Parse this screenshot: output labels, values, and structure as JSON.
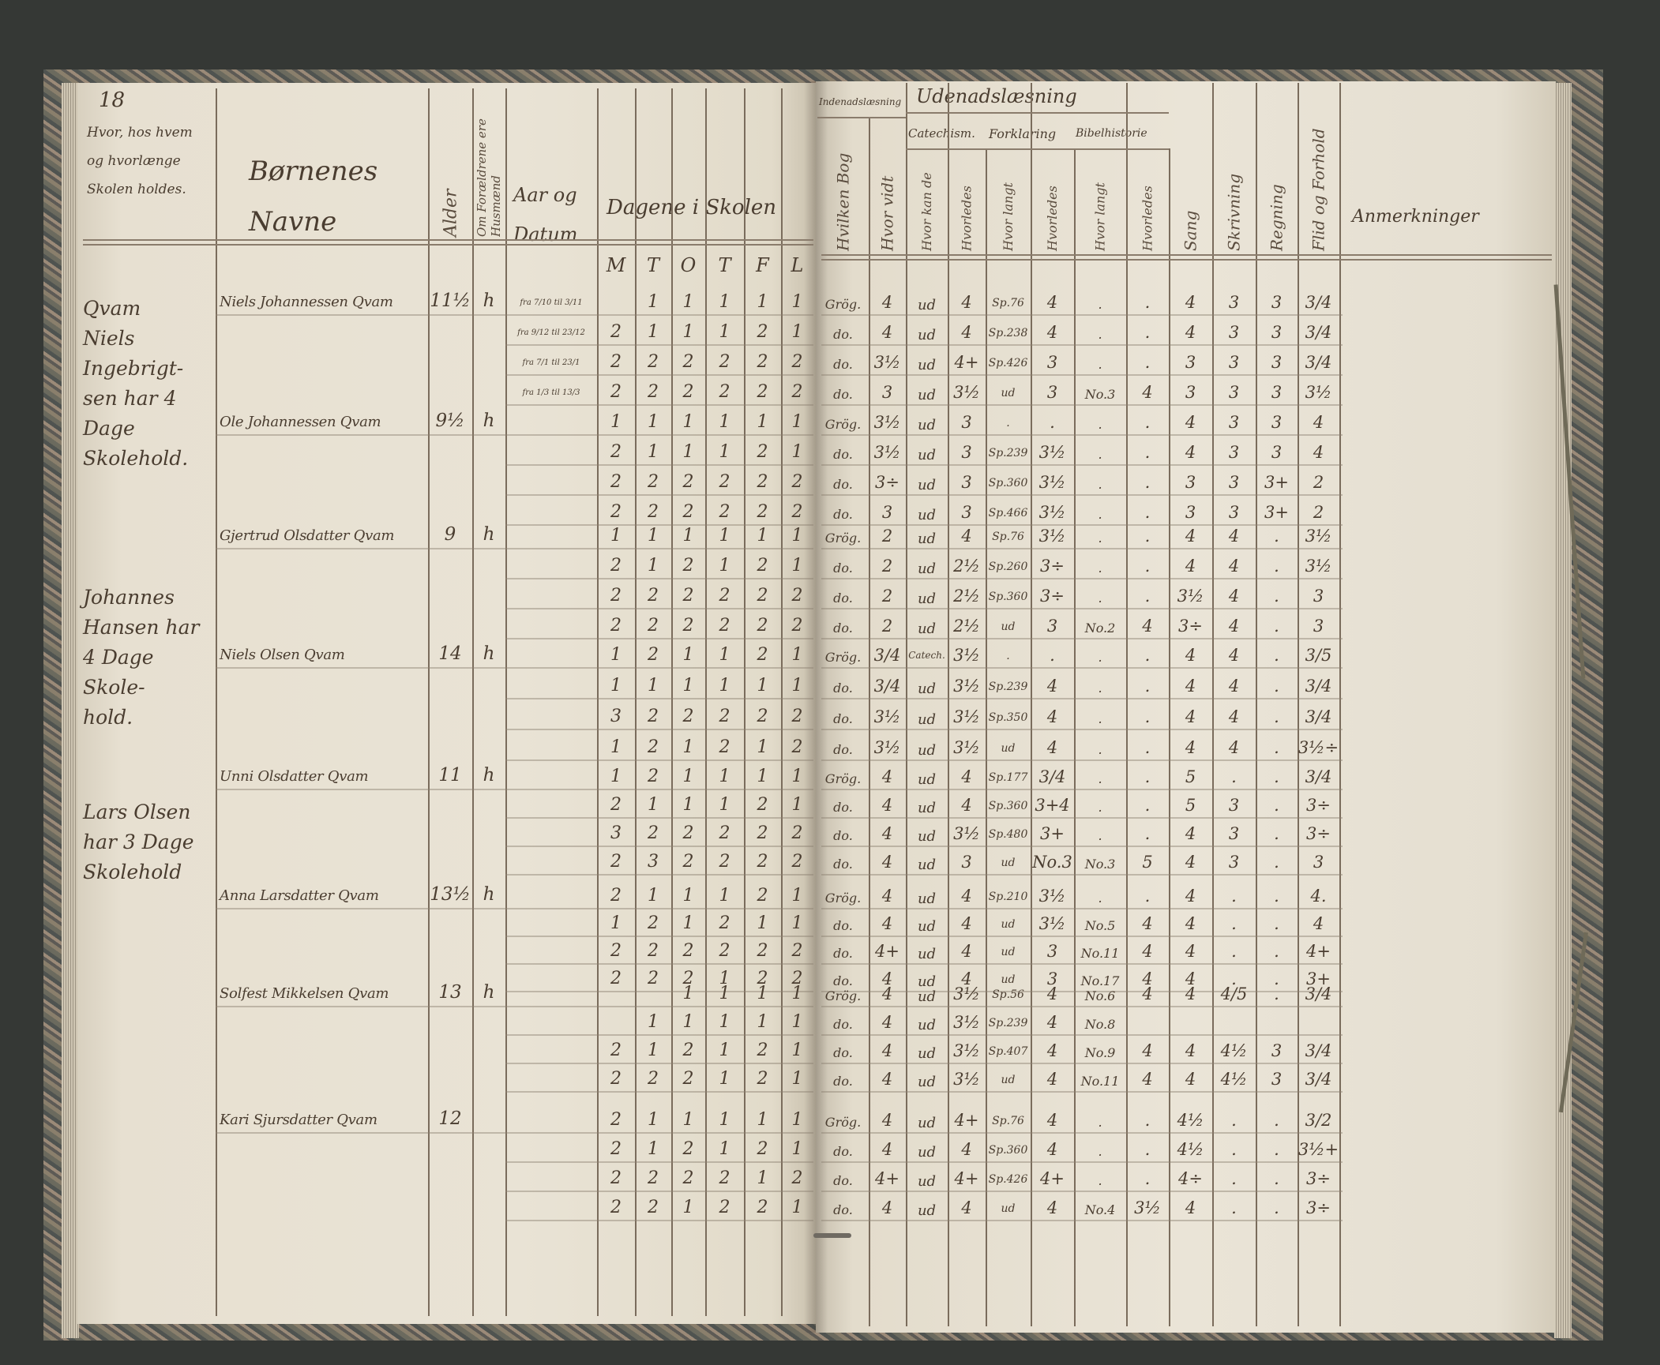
{
  "left_page": {
    "page_number": "18",
    "headers": {
      "location": "Hvor, hos hvem og hvorlænge Skolen holdes.",
      "names_line1": "Børnenes",
      "names_line2": "Navne",
      "age": "Alder",
      "parents": "Om Forældrene ere Husmænd",
      "dates_line1": "Aar og",
      "dates_line2": "Datum",
      "days": "Dagene i Skolen",
      "weekdays": [
        "M",
        "T",
        "O",
        "T",
        "F",
        "L"
      ]
    },
    "margin_notes": [
      "Qvam\nNiels Ingebrigt-\nsen har 4 Dage\nSkolehold.",
      "Johannes\nHansen har\n4 Dage Skole-\nhold.",
      "Lars Olsen\nhar 3 Dage\nSkolehold"
    ]
  },
  "right_page": {
    "headers": {
      "indenad": "Indenadslæsning",
      "udenad": "Udenadslæsning",
      "catechism": "Catechism.",
      "forklaring": "Forklaring",
      "bibelhistorie": "Bibelhistorie",
      "columns": [
        "Hvilken Bog",
        "Hvor vidt",
        "Hvor kan de",
        "Hvorledes",
        "Hvor langt",
        "Hvorledes",
        "Hvor langt",
        "Hvorledes",
        "Sang",
        "Skrivning",
        "Regning",
        "Flid og Forhold"
      ],
      "remarks": "Anmerkninger"
    }
  },
  "students": [
    {
      "name": "Niels Johannessen Qvam",
      "age": "11½",
      "status": "h",
      "dates": [
        "fra 7/10 til 3/11",
        "fra 9/12 til 23/12",
        "fra 7/1 til 23/1",
        "fra 1/3 til 13/3"
      ],
      "attendance": [
        [
          "",
          "1",
          "1",
          "1",
          "1",
          "1"
        ],
        [
          "2",
          "1",
          "1",
          "1",
          "2",
          "1"
        ],
        [
          "2",
          "2",
          "2",
          "2",
          "2",
          "2"
        ],
        [
          "2",
          "2",
          "2",
          "2",
          "2",
          "2"
        ]
      ],
      "marks": [
        [
          "Grög.",
          "4",
          "ud",
          "4",
          "Sp.76",
          "4",
          ".",
          ".",
          "4",
          "3",
          "3",
          "3/4"
        ],
        [
          "do.",
          "4",
          "ud",
          "4",
          "Sp.238",
          "4",
          ".",
          ".",
          "4",
          "3",
          "3",
          "3/4"
        ],
        [
          "do.",
          "3½",
          "ud",
          "4+",
          "Sp.426",
          "3",
          ".",
          ".",
          "3",
          "3",
          "3",
          "3/4"
        ],
        [
          "do.",
          "3",
          "ud",
          "3½",
          "ud",
          "3",
          "No.3",
          "4",
          "3",
          "3",
          "3",
          "3½"
        ]
      ]
    },
    {
      "name": "Ole Johannessen Qvam",
      "age": "9½",
      "status": "h",
      "dates": [
        "",
        "",
        "",
        ""
      ],
      "attendance": [
        [
          "1",
          "1",
          "1",
          "1",
          "1",
          "1"
        ],
        [
          "2",
          "1",
          "1",
          "1",
          "2",
          "1"
        ],
        [
          "2",
          "2",
          "2",
          "2",
          "2",
          "2"
        ],
        [
          "2",
          "2",
          "2",
          "2",
          "2",
          "2"
        ]
      ],
      "marks": [
        [
          "Grög.",
          "3½",
          "ud",
          "3",
          ".",
          ".",
          ".",
          ".",
          "4",
          "3",
          "3",
          "4"
        ],
        [
          "do.",
          "3½",
          "ud",
          "3",
          "Sp.239",
          "3½",
          ".",
          ".",
          "4",
          "3",
          "3",
          "4"
        ],
        [
          "do.",
          "3÷",
          "ud",
          "3",
          "Sp.360",
          "3½",
          ".",
          ".",
          "3",
          "3",
          "3+",
          "2"
        ],
        [
          "do.",
          "3",
          "ud",
          "3",
          "Sp.466",
          "3½",
          ".",
          ".",
          "3",
          "3",
          "3+",
          "2"
        ]
      ]
    },
    {
      "name": "Gjertrud Olsdatter Qvam",
      "age": "9",
      "status": "h",
      "dates": [
        "",
        "",
        "",
        ""
      ],
      "attendance": [
        [
          "1",
          "1",
          "1",
          "1",
          "1",
          "1"
        ],
        [
          "2",
          "1",
          "2",
          "1",
          "2",
          "1"
        ],
        [
          "2",
          "2",
          "2",
          "2",
          "2",
          "2"
        ],
        [
          "2",
          "2",
          "2",
          "2",
          "2",
          "2"
        ]
      ],
      "marks": [
        [
          "Grög.",
          "2",
          "ud",
          "4",
          "Sp.76",
          "3½",
          ".",
          ".",
          "4",
          "4",
          ".",
          "3½"
        ],
        [
          "do.",
          "2",
          "ud",
          "2½",
          "Sp.260",
          "3÷",
          ".",
          ".",
          "4",
          "4",
          ".",
          "3½"
        ],
        [
          "do.",
          "2",
          "ud",
          "2½",
          "Sp.360",
          "3÷",
          ".",
          ".",
          "3½",
          "4",
          ".",
          "3"
        ],
        [
          "do.",
          "2",
          "ud",
          "2½",
          "ud",
          "3",
          "No.2",
          "4",
          "3÷",
          "4",
          ".",
          "3"
        ]
      ]
    },
    {
      "name": "Niels Olsen Qvam",
      "age": "14",
      "status": "h",
      "dates": [
        "",
        "",
        "",
        ""
      ],
      "attendance": [
        [
          "1",
          "2",
          "1",
          "1",
          "2",
          "1"
        ],
        [
          "1",
          "1",
          "1",
          "1",
          "1",
          "1"
        ],
        [
          "3",
          "2",
          "2",
          "2",
          "2",
          "2"
        ],
        [
          "1",
          "2",
          "1",
          "2",
          "1",
          "2"
        ]
      ],
      "marks": [
        [
          "Grög.",
          "3/4",
          "Catech.",
          "3½",
          ".",
          ".",
          ".",
          ".",
          "4",
          "4",
          ".",
          "3/5"
        ],
        [
          "do.",
          "3/4",
          "ud",
          "3½",
          "Sp.239",
          "4",
          ".",
          ".",
          "4",
          "4",
          ".",
          "3/4"
        ],
        [
          "do.",
          "3½",
          "ud",
          "3½",
          "Sp.350",
          "4",
          ".",
          ".",
          "4",
          "4",
          ".",
          "3/4"
        ],
        [
          "do.",
          "3½",
          "ud",
          "3½",
          "ud",
          "4",
          ".",
          ".",
          "4",
          "4",
          ".",
          "3½÷"
        ]
      ]
    },
    {
      "name": "Unni Olsdatter Qvam",
      "age": "11",
      "status": "h",
      "dates": [
        "",
        "",
        "",
        ""
      ],
      "attendance": [
        [
          "1",
          "2",
          "1",
          "1",
          "1",
          "1"
        ],
        [
          "2",
          "1",
          "1",
          "1",
          "2",
          "1"
        ],
        [
          "3",
          "2",
          "2",
          "2",
          "2",
          "2"
        ],
        [
          "2",
          "3",
          "2",
          "2",
          "2",
          "2"
        ]
      ],
      "marks": [
        [
          "Grög.",
          "4",
          "ud",
          "4",
          "Sp.177",
          "3/4",
          ".",
          ".",
          "5",
          ".",
          ".",
          "3/4"
        ],
        [
          "do.",
          "4",
          "ud",
          "4",
          "Sp.360",
          "3+4",
          ".",
          ".",
          "5",
          "3",
          ".",
          "3÷"
        ],
        [
          "do.",
          "4",
          "ud",
          "3½",
          "Sp.480",
          "3+",
          ".",
          ".",
          "4",
          "3",
          ".",
          "3÷"
        ],
        [
          "do.",
          "4",
          "ud",
          "3",
          "ud",
          "No.3",
          "No.3",
          "5",
          "4",
          "3",
          ".",
          "3"
        ]
      ]
    },
    {
      "name": "Anna Larsdatter Qvam",
      "age": "13½",
      "status": "h",
      "dates": [
        "",
        "",
        "",
        ""
      ],
      "attendance": [
        [
          "2",
          "1",
          "1",
          "1",
          "2",
          "1"
        ],
        [
          "1",
          "2",
          "1",
          "2",
          "1",
          "1"
        ],
        [
          "2",
          "2",
          "2",
          "2",
          "2",
          "2"
        ],
        [
          "2",
          "2",
          "2",
          "1",
          "2",
          "2"
        ]
      ],
      "marks": [
        [
          "Grög.",
          "4",
          "ud",
          "4",
          "Sp.210",
          "3½",
          ".",
          ".",
          "4",
          ".",
          ".",
          "4."
        ],
        [
          "do.",
          "4",
          "ud",
          "4",
          "ud",
          "3½",
          "No.5",
          "4",
          "4",
          ".",
          ".",
          "4"
        ],
        [
          "do.",
          "4+",
          "ud",
          "4",
          "ud",
          "3",
          "No.11",
          "4",
          "4",
          ".",
          ".",
          "4+"
        ],
        [
          "do.",
          "4",
          "ud",
          "4",
          "ud",
          "3",
          "No.17",
          "4",
          "4",
          ".",
          ".",
          "3+"
        ]
      ]
    },
    {
      "name": "Solfest Mikkelsen Qvam",
      "age": "13",
      "status": "h",
      "dates": [
        "",
        "",
        "",
        ""
      ],
      "attendance": [
        [
          "",
          "",
          "1",
          "1",
          "1",
          "1"
        ],
        [
          "",
          "1",
          "1",
          "1",
          "1",
          "1"
        ],
        [
          "2",
          "1",
          "2",
          "1",
          "2",
          "1"
        ],
        [
          "2",
          "2",
          "2",
          "1",
          "2",
          "1"
        ]
      ],
      "marks": [
        [
          "Grög.",
          "4",
          "ud",
          "3½",
          "Sp.56",
          "4",
          "No.6",
          "4",
          "4",
          "4/5",
          ".",
          "3/4"
        ],
        [
          "do.",
          "4",
          "ud",
          "3½",
          "Sp.239",
          "4",
          "No.8",
          "",
          "",
          "",
          "",
          ""
        ],
        [
          "do.",
          "4",
          "ud",
          "3½",
          "Sp.407",
          "4",
          "No.9",
          "4",
          "4",
          "4½",
          "3",
          "3/4"
        ],
        [
          "do.",
          "4",
          "ud",
          "3½",
          "ud",
          "4",
          "No.11",
          "4",
          "4",
          "4½",
          "3",
          "3/4"
        ]
      ]
    },
    {
      "name": "Kari Sjursdatter Qvam",
      "age": "12",
      "status": "",
      "dates": [
        "",
        "",
        "",
        ""
      ],
      "attendance": [
        [
          "2",
          "1",
          "1",
          "1",
          "1",
          "1"
        ],
        [
          "2",
          "1",
          "2",
          "1",
          "2",
          "1"
        ],
        [
          "2",
          "2",
          "2",
          "2",
          "1",
          "2"
        ],
        [
          "2",
          "2",
          "1",
          "2",
          "2",
          "1"
        ]
      ],
      "marks": [
        [
          "Grög.",
          "4",
          "ud",
          "4+",
          "Sp.76",
          "4",
          ".",
          ".",
          "4½",
          ".",
          ".",
          "3/2"
        ],
        [
          "do.",
          "4",
          "ud",
          "4",
          "Sp.360",
          "4",
          ".",
          ".",
          "4½",
          ".",
          ".",
          "3½+"
        ],
        [
          "do.",
          "4+",
          "ud",
          "4+",
          "Sp.426",
          "4+",
          ".",
          ".",
          "4÷",
          ".",
          ".",
          "3÷"
        ],
        [
          "do.",
          "4",
          "ud",
          "4",
          "ud",
          "4",
          "No.4",
          "3½",
          "4",
          ".",
          ".",
          "3÷"
        ]
      ]
    }
  ]
}
